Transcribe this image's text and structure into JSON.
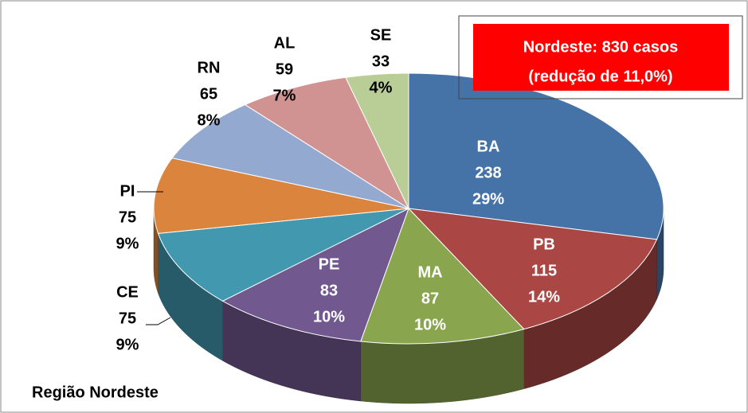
{
  "chart_data": {
    "type": "pie",
    "title": "Nordeste: 830 casos",
    "subtitle": "(redução de 11,0%)",
    "footer": "Região Nordeste",
    "categories": [
      "BA",
      "PB",
      "MA",
      "PE",
      "CE",
      "PI",
      "RN",
      "AL",
      "SE"
    ],
    "values": [
      238,
      115,
      87,
      83,
      75,
      75,
      65,
      59,
      33
    ],
    "percent_labels": [
      "29%",
      "14%",
      "10%",
      "10%",
      "9%",
      "9%",
      "8%",
      "7%",
      "4%"
    ],
    "colors": [
      "#4572a7",
      "#aa4643",
      "#89a54e",
      "#71588f",
      "#4198af",
      "#db843d",
      "#93a9cf",
      "#d19392",
      "#b9cd96"
    ]
  }
}
